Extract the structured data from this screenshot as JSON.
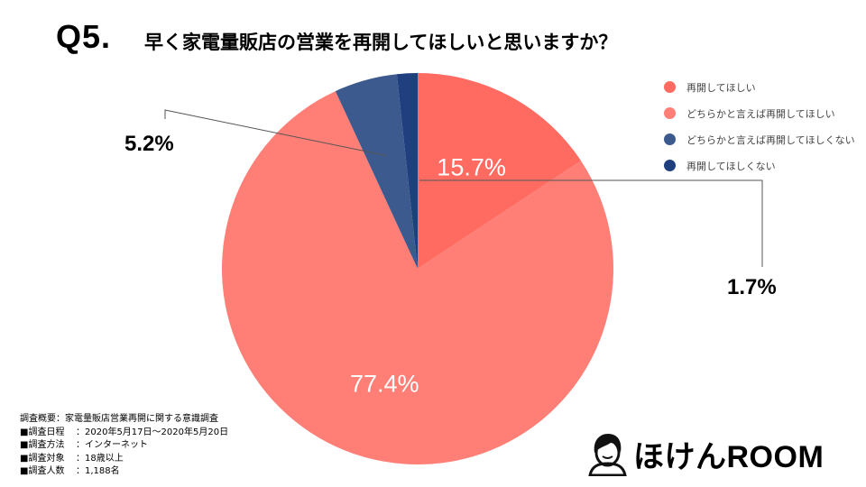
{
  "header": {
    "question_number": "Q5.",
    "question_text": "早く家電量販店の営業を再開してほしいと思いますか？"
  },
  "chart_data": {
    "type": "pie",
    "categories": [
      "再開してほしい",
      "どちらかと言えば再開してほしい",
      "どちらかと言えば再開してほしくない",
      "再開してほしくない"
    ],
    "values": [
      15.7,
      77.4,
      5.2,
      1.7
    ],
    "labels": [
      "15.7%",
      "77.4%",
      "5.2%",
      "1.7%"
    ],
    "colors": [
      "#ff6b61",
      "#ff7f77",
      "#3d5a8f",
      "#1f3f7f"
    ],
    "start_angle_deg": 0,
    "direction": "clockwise",
    "legend_position": "right"
  },
  "survey": {
    "title": "調査概要：家電量販店営業再開に関する意識調査",
    "rows": [
      {
        "key": "■調査日程",
        "value": "：2020年5月17日～2020年5月20日"
      },
      {
        "key": "■調査方法",
        "value": "：インターネット"
      },
      {
        "key": "■調査対象",
        "value": "：18歳以上"
      },
      {
        "key": "■調査人数",
        "value": "：1,188名"
      }
    ]
  },
  "logo": {
    "text": "ほけんROOM",
    "icon": "person-avatar-icon"
  }
}
